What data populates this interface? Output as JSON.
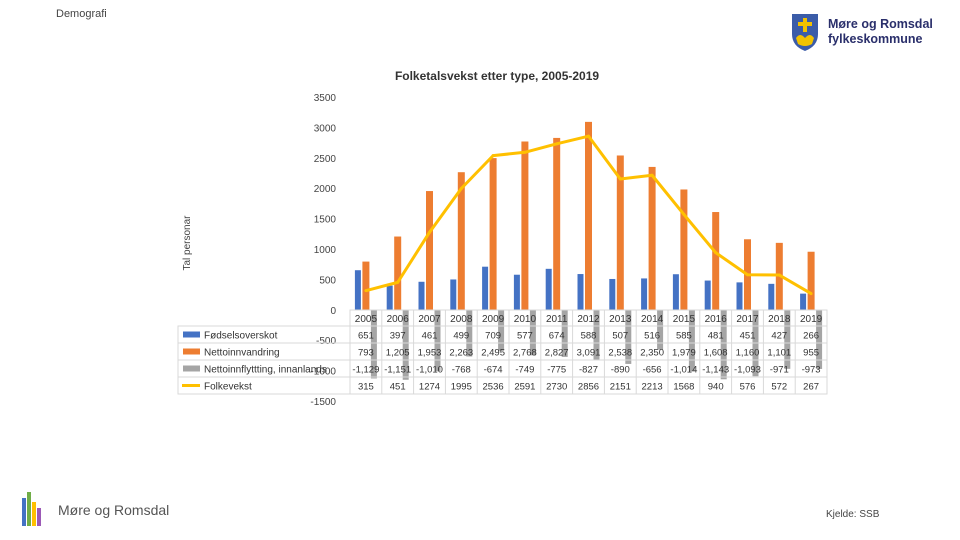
{
  "header": {
    "section": "Demografi"
  },
  "brand": {
    "line1": "Møre og Romsdal",
    "line2": "fylkeskommune"
  },
  "footer": {
    "name": "Møre og Romsdal",
    "source": "Kjelde: SSB"
  },
  "colors": {
    "births": "#4472c4",
    "migration": "#ed7d31",
    "internal": "#a5a5a5",
    "total": "#ffc000"
  },
  "chart_data": {
    "type": "bar",
    "title": "Folketalsvekst etter type, 2005-2019",
    "ylabel": "Tal personar",
    "xlabel": "",
    "ylim": [
      -1500,
      3500
    ],
    "yticks": [
      "3500",
      "3000",
      "2500",
      "2000",
      "1500",
      "1000",
      "500",
      "0",
      "-500",
      "-1000",
      "-1500"
    ],
    "categories": [
      "2005",
      "2006",
      "2007",
      "2008",
      "2009",
      "2010",
      "2011",
      "2012",
      "2013",
      "2014",
      "2015",
      "2016",
      "2017",
      "2018",
      "2019"
    ],
    "series": [
      {
        "name": "Fødselsoverskot",
        "kind": "bar",
        "values": [
          651,
          397,
          461,
          499,
          709,
          577,
          674,
          588,
          507,
          516,
          585,
          481,
          451,
          427,
          266
        ],
        "labels": [
          "651",
          "397",
          "461",
          "499",
          "709",
          "577",
          "674",
          "588",
          "507",
          "516",
          "585",
          "481",
          "451",
          "427",
          "266"
        ]
      },
      {
        "name": "Nettoinnvandring",
        "kind": "bar",
        "values": [
          793,
          1205,
          1953,
          2263,
          2495,
          2768,
          2827,
          3091,
          2538,
          2350,
          1979,
          1608,
          1160,
          1101,
          955
        ],
        "labels": [
          "793",
          "1,205",
          "1,953",
          "2,263",
          "2,495",
          "2,768",
          "2,827",
          "3,091",
          "2,538",
          "2,350",
          "1,979",
          "1,608",
          "1,160",
          "1,101",
          "955"
        ]
      },
      {
        "name": "Nettoinnflyttting, innanlands",
        "kind": "bar",
        "values": [
          -1129,
          -1151,
          -1010,
          -768,
          -674,
          -749,
          -775,
          -827,
          -890,
          -656,
          -1014,
          -1143,
          -1093,
          -971,
          -973
        ],
        "labels": [
          "-1,129",
          "-1,151",
          "-1,010",
          "-768",
          "-674",
          "-749",
          "-775",
          "-827",
          "-890",
          "-656",
          "-1,014",
          "-1,143",
          "-1,093",
          "-971",
          "-973"
        ]
      },
      {
        "name": "Folkevekst",
        "kind": "line",
        "values": [
          315,
          451,
          1274,
          1995,
          2536,
          2591,
          2730,
          2856,
          2151,
          2213,
          1568,
          940,
          576,
          572,
          267
        ],
        "labels": [
          "315",
          "451",
          "1274",
          "1995",
          "2536",
          "2591",
          "2730",
          "2856",
          "2151",
          "2213",
          "1568",
          "940",
          "576",
          "572",
          "267"
        ]
      }
    ]
  }
}
